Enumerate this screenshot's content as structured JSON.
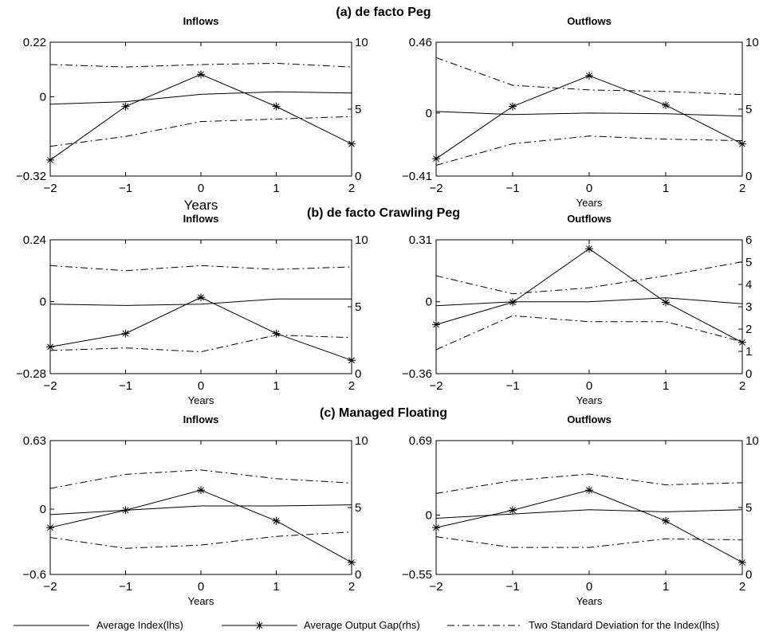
{
  "legend": [
    {
      "name": "Average Index(lhs)",
      "style": "solid",
      "marker": ""
    },
    {
      "name": "Average Output Gap(rhs)",
      "style": "solid",
      "marker": "*"
    },
    {
      "name": "Two Standard Deviation for the Index(lhs)",
      "style": "dashdot",
      "marker": ""
    }
  ],
  "chart_data": [
    {
      "type": "line",
      "section": "(a) de facto Peg",
      "title": "Inflows",
      "xlabel": "Years",
      "x": [
        -2,
        -1,
        0,
        1,
        2
      ],
      "xticks": [
        "−2",
        "−1",
        "0",
        "1",
        "2"
      ],
      "ylim_left": [
        -0.32,
        0.22
      ],
      "yticks_left": [
        "−0.32",
        "0",
        "0.22"
      ],
      "ytick_values_left": [
        -0.32,
        0,
        0.22
      ],
      "ylim_right": [
        0,
        10
      ],
      "yticks_right": [
        "0",
        "5",
        "10"
      ],
      "ytick_values_right": [
        0,
        5,
        10
      ],
      "series": [
        {
          "name": "Average Index(lhs)",
          "axis": "left",
          "style": "solid",
          "values": [
            -0.03,
            -0.02,
            0.01,
            0.02,
            0.015
          ]
        },
        {
          "name": "Average Output Gap(rhs)",
          "axis": "right",
          "style": "star",
          "values": [
            1.2,
            5.2,
            7.6,
            5.2,
            2.4
          ]
        },
        {
          "name": "Two Standard Deviation for the Index(lhs)",
          "axis": "left",
          "style": "dashdot",
          "values": [
            0.13,
            0.12,
            0.13,
            0.135,
            0.12
          ]
        },
        {
          "name": "Two Standard Deviation for the Index(lhs)",
          "axis": "left",
          "style": "dashdot",
          "values": [
            -0.2,
            -0.16,
            -0.1,
            -0.09,
            -0.08
          ]
        }
      ]
    },
    {
      "type": "line",
      "section": "(a) de facto Peg",
      "title": "Outflows",
      "xlabel": "Years",
      "x": [
        -2,
        -1,
        0,
        1,
        2
      ],
      "xticks": [
        "−2",
        "−1",
        "0",
        "1",
        "2"
      ],
      "ylim_left": [
        -0.41,
        0.46
      ],
      "yticks_left": [
        "−0.41",
        "0",
        "0.46"
      ],
      "ytick_values_left": [
        -0.41,
        0,
        0.46
      ],
      "ylim_right": [
        0,
        10
      ],
      "yticks_right": [
        "0",
        "5",
        "10"
      ],
      "ytick_values_right": [
        0,
        5,
        10
      ],
      "series": [
        {
          "name": "Average Index(lhs)",
          "axis": "left",
          "style": "solid",
          "values": [
            0.01,
            -0.01,
            0.0,
            -0.005,
            -0.02
          ]
        },
        {
          "name": "Average Output Gap(rhs)",
          "axis": "right",
          "style": "star",
          "values": [
            1.3,
            5.2,
            7.5,
            5.3,
            2.4
          ]
        },
        {
          "name": "Two Standard Deviation for the Index(lhs)",
          "axis": "left",
          "style": "dashdot",
          "values": [
            0.36,
            0.18,
            0.15,
            0.14,
            0.12
          ]
        },
        {
          "name": "Two Standard Deviation for the Index(lhs)",
          "axis": "left",
          "style": "dashdot",
          "values": [
            -0.34,
            -0.2,
            -0.15,
            -0.17,
            -0.18
          ]
        }
      ]
    },
    {
      "type": "line",
      "section": "(b) de facto Crawling Peg",
      "title": "Inflows",
      "xlabel": "Years",
      "x": [
        -2,
        -1,
        0,
        1,
        2
      ],
      "xticks": [
        "−2",
        "−1",
        "0",
        "1",
        "2"
      ],
      "ylim_left": [
        -0.28,
        0.24
      ],
      "yticks_left": [
        "−0.28",
        "0",
        "0.24"
      ],
      "ytick_values_left": [
        -0.28,
        0,
        0.24
      ],
      "ylim_right": [
        0,
        10
      ],
      "yticks_right": [
        "0",
        "5",
        "10"
      ],
      "ytick_values_right": [
        0,
        5,
        10
      ],
      "series": [
        {
          "name": "Average Index(lhs)",
          "axis": "left",
          "style": "solid",
          "values": [
            -0.01,
            -0.015,
            -0.01,
            0.01,
            0.01
          ]
        },
        {
          "name": "Average Output Gap(rhs)",
          "axis": "right",
          "style": "star",
          "values": [
            2.0,
            3.0,
            5.7,
            3.0,
            1.0
          ]
        },
        {
          "name": "Two Standard Deviation for the Index(lhs)",
          "axis": "left",
          "style": "dashdot",
          "values": [
            0.14,
            0.12,
            0.14,
            0.125,
            0.135
          ]
        },
        {
          "name": "Two Standard Deviation for the Index(lhs)",
          "axis": "left",
          "style": "dashdot",
          "values": [
            -0.19,
            -0.18,
            -0.195,
            -0.13,
            -0.14
          ]
        }
      ]
    },
    {
      "type": "line",
      "section": "(b) de facto Crawling Peg",
      "title": "Outflows",
      "xlabel": "Years",
      "x": [
        -2,
        -1,
        0,
        1,
        2
      ],
      "xticks": [
        "−2",
        "−1",
        "0",
        "1",
        "2"
      ],
      "ylim_left": [
        -0.36,
        0.31
      ],
      "yticks_left": [
        "−0.36",
        "0",
        "0.31"
      ],
      "ytick_values_left": [
        -0.36,
        0,
        0.31
      ],
      "ylim_right": [
        0,
        6
      ],
      "yticks_right": [
        "0",
        "1",
        "2",
        "3",
        "4",
        "5",
        "6"
      ],
      "ytick_values_right": [
        0,
        1,
        2,
        3,
        4,
        5,
        6
      ],
      "series": [
        {
          "name": "Average Index(lhs)",
          "axis": "left",
          "style": "solid",
          "values": [
            -0.02,
            0.0,
            0.0,
            0.02,
            -0.01
          ]
        },
        {
          "name": "Average Output Gap(rhs)",
          "axis": "right",
          "style": "star",
          "values": [
            2.2,
            3.2,
            5.6,
            3.2,
            1.4
          ]
        },
        {
          "name": "Two Standard Deviation for the Index(lhs)",
          "axis": "left",
          "style": "dashdot",
          "values": [
            0.13,
            0.04,
            0.07,
            0.13,
            0.2
          ]
        },
        {
          "name": "Two Standard Deviation for the Index(lhs)",
          "axis": "left",
          "style": "dashdot",
          "values": [
            -0.24,
            -0.07,
            -0.1,
            -0.1,
            -0.2
          ]
        }
      ]
    },
    {
      "type": "line",
      "section": "(c) Managed Floating",
      "title": "Inflows",
      "xlabel": "Years",
      "x": [
        -2,
        -1,
        0,
        1,
        2
      ],
      "xticks": [
        "−2",
        "−1",
        "0",
        "1",
        "2"
      ],
      "ylim_left": [
        -0.6,
        0.63
      ],
      "yticks_left": [
        "−0.6",
        "0",
        "0.63"
      ],
      "ytick_values_left": [
        -0.6,
        0,
        0.63
      ],
      "ylim_right": [
        0,
        10
      ],
      "yticks_right": [
        "0",
        "5",
        "10"
      ],
      "ytick_values_right": [
        0,
        5,
        10
      ],
      "series": [
        {
          "name": "Average Index(lhs)",
          "axis": "left",
          "style": "solid",
          "values": [
            -0.05,
            -0.01,
            0.03,
            0.03,
            0.04
          ]
        },
        {
          "name": "Average Output Gap(rhs)",
          "axis": "right",
          "style": "star",
          "values": [
            3.5,
            4.8,
            6.3,
            4.0,
            0.9
          ]
        },
        {
          "name": "Two Standard Deviation for the Index(lhs)",
          "axis": "left",
          "style": "dashdot",
          "values": [
            0.19,
            0.32,
            0.36,
            0.28,
            0.24
          ]
        },
        {
          "name": "Two Standard Deviation for the Index(lhs)",
          "axis": "left",
          "style": "dashdot",
          "values": [
            -0.26,
            -0.36,
            -0.33,
            -0.25,
            -0.21
          ]
        }
      ]
    },
    {
      "type": "line",
      "section": "(c) Managed Floating",
      "title": "Outflows",
      "xlabel": "Years",
      "x": [
        -2,
        -1,
        0,
        1,
        2
      ],
      "xticks": [
        "−2",
        "−1",
        "0",
        "1",
        "2"
      ],
      "ylim_left": [
        -0.55,
        0.69
      ],
      "yticks_left": [
        "−0.55",
        "0",
        "0.69"
      ],
      "ytick_values_left": [
        -0.55,
        0,
        0.69
      ],
      "ylim_right": [
        0,
        10
      ],
      "yticks_right": [
        "0",
        "5",
        "10"
      ],
      "ytick_values_right": [
        0,
        5,
        10
      ],
      "series": [
        {
          "name": "Average Index(lhs)",
          "axis": "left",
          "style": "solid",
          "values": [
            -0.03,
            0.01,
            0.05,
            0.03,
            0.05
          ]
        },
        {
          "name": "Average Output Gap(rhs)",
          "axis": "right",
          "style": "star",
          "values": [
            3.5,
            4.8,
            6.3,
            4.0,
            0.9
          ]
        },
        {
          "name": "Two Standard Deviation for the Index(lhs)",
          "axis": "left",
          "style": "dashdot",
          "values": [
            0.2,
            0.32,
            0.38,
            0.28,
            0.3
          ]
        },
        {
          "name": "Two Standard Deviation for the Index(lhs)",
          "axis": "left",
          "style": "dashdot",
          "values": [
            -0.2,
            -0.3,
            -0.3,
            -0.22,
            -0.23
          ]
        }
      ]
    }
  ],
  "sections": [
    {
      "title": "(a) de facto Peg"
    },
    {
      "title": "(b) de facto Crawling Peg"
    },
    {
      "title": "(c) Managed Floating"
    }
  ]
}
